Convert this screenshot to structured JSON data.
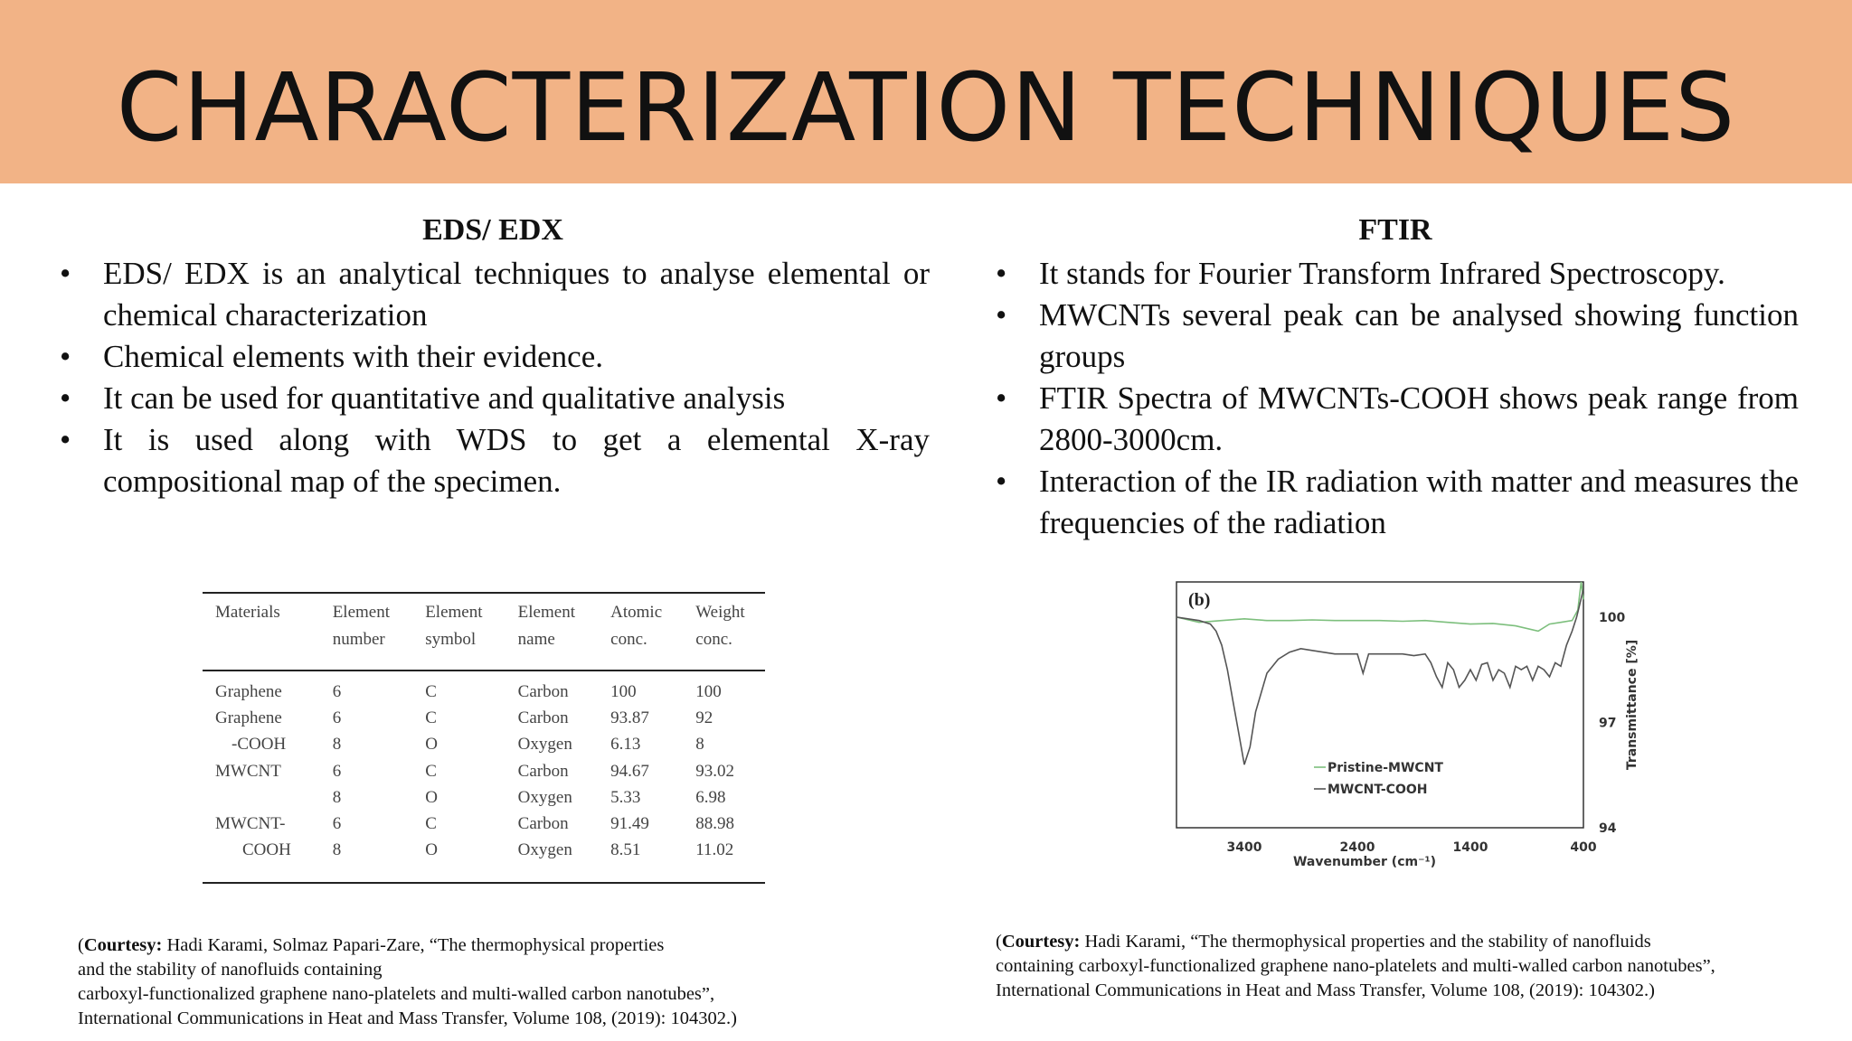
{
  "slide": {
    "title": "CHARACTERIZATION TECHNIQUES"
  },
  "left": {
    "heading": "EDS/ EDX",
    "bullets": [
      "EDS/ EDX is an analytical techniques to analyse elemental or chemical characterization",
      "Chemical elements with their evidence.",
      "It can be used for quantitative and qualitative analysis",
      "It is used along with WDS to get a elemental X-ray compositional map of the specimen."
    ],
    "bullet_symbol": "•"
  },
  "right": {
    "heading": "FTIR",
    "bullets": [
      "It stands for Fourier Transform Infrared Spectroscopy.",
      "MWCNTs several peak can be analysed showing function groups",
      "FTIR Spectra of MWCNTs-COOH shows peak range from 2800-3000cm.",
      "Interaction of the IR radiation with matter and measures the frequencies of the radiation"
    ]
  },
  "table": {
    "headers": [
      [
        "Materials",
        ""
      ],
      [
        "Element",
        "number"
      ],
      [
        "Element",
        "symbol"
      ],
      [
        "Element",
        "name"
      ],
      [
        "Atomic",
        "conc."
      ],
      [
        "Weight",
        "conc."
      ]
    ],
    "rows": [
      [
        "Graphene",
        "6",
        "C",
        "Carbon",
        "100",
        "100"
      ],
      [
        "Graphene",
        "6",
        "C",
        "Carbon",
        "93.87",
        "92"
      ],
      [
        "-COOH",
        "8",
        "O",
        "Oxygen",
        "6.13",
        "8"
      ],
      [
        "MWCNT",
        "6",
        "C",
        "Carbon",
        "94.67",
        "93.02"
      ],
      [
        "",
        "8",
        "O",
        "Oxygen",
        "5.33",
        "6.98"
      ],
      [
        "MWCNT-",
        "6",
        "C",
        "Carbon",
        "91.49",
        "88.98"
      ],
      [
        "COOH",
        "8",
        "O",
        "Oxygen",
        "8.51",
        "11.02"
      ]
    ]
  },
  "chart_data": {
    "type": "line",
    "panel_label": "(b)",
    "xlabel": "Wavenumber (cm⁻¹)",
    "ylabel": "Transmittance [%]",
    "x_ticks": [
      "3400",
      "2400",
      "1400",
      "400"
    ],
    "y_ticks": [
      "100",
      "97",
      "94"
    ],
    "xlim": [
      4000,
      400
    ],
    "ylim": [
      94,
      101
    ],
    "grid": false,
    "legend_position": "bottom-center",
    "series": [
      {
        "name": "Pristine-MWCNT",
        "color": "#7dbf7d",
        "x": [
          4000,
          3800,
          3600,
          3400,
          3200,
          3000,
          2800,
          2600,
          2400,
          2200,
          2000,
          1800,
          1600,
          1400,
          1200,
          1000,
          800,
          700,
          600,
          500,
          450,
          420,
          400
        ],
        "y": [
          100.0,
          99.85,
          99.9,
          99.95,
          99.9,
          99.9,
          99.92,
          99.9,
          99.9,
          99.9,
          99.88,
          99.9,
          99.85,
          99.8,
          99.82,
          99.75,
          99.6,
          99.8,
          99.85,
          99.9,
          100.2,
          101.0,
          100.5
        ]
      },
      {
        "name": "MWCNT-COOH",
        "color": "#555555",
        "x": [
          4000,
          3900,
          3800,
          3700,
          3650,
          3600,
          3550,
          3500,
          3450,
          3400,
          3350,
          3300,
          3200,
          3100,
          3000,
          2900,
          2800,
          2600,
          2400,
          2350,
          2300,
          2200,
          2000,
          1900,
          1800,
          1750,
          1700,
          1650,
          1600,
          1550,
          1500,
          1450,
          1400,
          1350,
          1300,
          1250,
          1200,
          1150,
          1100,
          1050,
          1000,
          950,
          900,
          850,
          800,
          750,
          700,
          650,
          600,
          550,
          500,
          460,
          430,
          400
        ],
        "y": [
          100.0,
          99.95,
          99.9,
          99.8,
          99.6,
          99.2,
          98.5,
          97.6,
          96.7,
          95.8,
          96.3,
          97.3,
          98.4,
          98.8,
          99.0,
          99.1,
          99.05,
          98.95,
          98.95,
          98.4,
          98.95,
          98.95,
          98.95,
          98.9,
          98.95,
          98.7,
          98.3,
          98.0,
          98.7,
          98.5,
          98.0,
          98.2,
          98.5,
          98.2,
          98.65,
          98.7,
          98.2,
          98.5,
          98.4,
          98.0,
          98.6,
          98.5,
          98.6,
          98.2,
          98.6,
          98.5,
          98.3,
          98.7,
          98.6,
          99.2,
          99.6,
          100.0,
          100.4,
          100.8
        ]
      }
    ]
  },
  "courtesy_left": {
    "label": "Courtesy:",
    "lines": [
      " Hadi Karami, Solmaz Papari-Zare,  “The thermophysical properties",
      "and the stability of nanofluids containing",
      " carboxyl-functionalized graphene nano-platelets and multi-walled carbon nanotubes”,",
      "International Communications in Heat and Mass Transfer, Volume 108, (2019): 104302.)"
    ]
  },
  "courtesy_right": {
    "label": "Courtesy:",
    "lines": [
      " Hadi Karami, “The thermophysical properties and the stability of nanofluids",
      "containing carboxyl-functionalized graphene nano-platelets and multi-walled carbon nanotubes”,",
      " International Communications in Heat and Mass Transfer, Volume 108, (2019): 104302.)"
    ]
  }
}
